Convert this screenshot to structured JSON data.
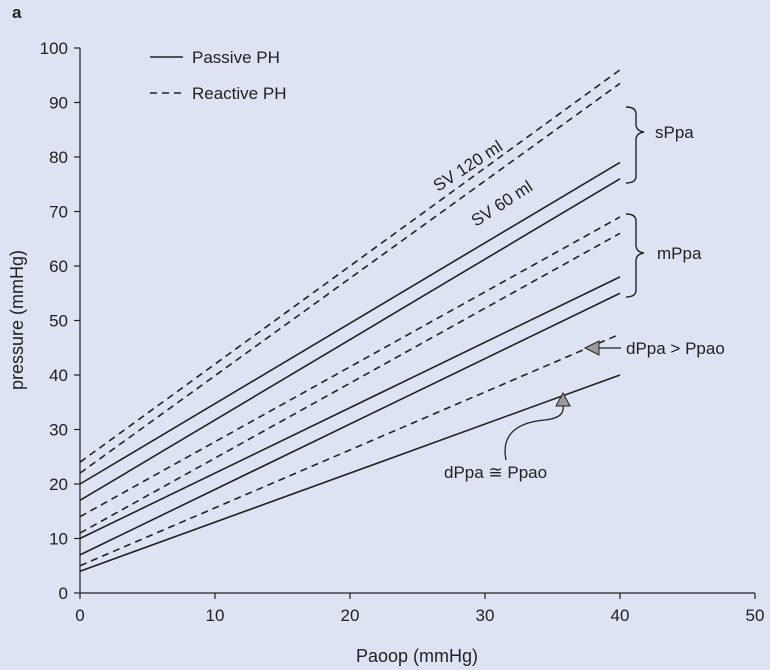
{
  "panel_label": "a",
  "chart_data": {
    "type": "line",
    "xlabel": "Paoop (mmHg)",
    "ylabel": "pressure (mmHg)",
    "xlim": [
      0,
      50
    ],
    "ylim": [
      0,
      100
    ],
    "xticks": [
      0,
      10,
      20,
      30,
      40,
      50
    ],
    "yticks": [
      0,
      10,
      20,
      30,
      40,
      50,
      60,
      70,
      80,
      90,
      100
    ],
    "grid": false,
    "legend_position": "top-left",
    "legend": [
      {
        "label": "Passive PH",
        "style": "solid"
      },
      {
        "label": "Reactive PH",
        "style": "dashed"
      }
    ],
    "series": [
      {
        "style": "dashed",
        "x": [
          0,
          40
        ],
        "y": [
          24,
          96
        ]
      },
      {
        "style": "dashed",
        "x": [
          0,
          40
        ],
        "y": [
          22,
          93.5
        ]
      },
      {
        "style": "solid",
        "x": [
          0,
          40
        ],
        "y": [
          20,
          79
        ]
      },
      {
        "style": "solid",
        "x": [
          0,
          40
        ],
        "y": [
          17,
          76
        ]
      },
      {
        "style": "dashed",
        "x": [
          0,
          40
        ],
        "y": [
          14,
          69
        ]
      },
      {
        "style": "dashed",
        "x": [
          0,
          40
        ],
        "y": [
          11,
          66
        ]
      },
      {
        "style": "solid",
        "x": [
          0,
          40
        ],
        "y": [
          10,
          58
        ]
      },
      {
        "style": "solid",
        "x": [
          0,
          40
        ],
        "y": [
          7,
          55
        ]
      },
      {
        "style": "dashed",
        "x": [
          0,
          40
        ],
        "y": [
          5,
          47.5
        ]
      },
      {
        "style": "solid",
        "x": [
          0,
          40
        ],
        "y": [
          4,
          40
        ]
      }
    ],
    "annotations": {
      "sv120": "SV 120 ml",
      "sv60": "SV 60 ml",
      "sppa": "sPpa",
      "mppa": "mPpa",
      "dppa_greater": "dPpa > Ppao",
      "dppa_approx": "dPpa ≅ Ppao"
    }
  }
}
